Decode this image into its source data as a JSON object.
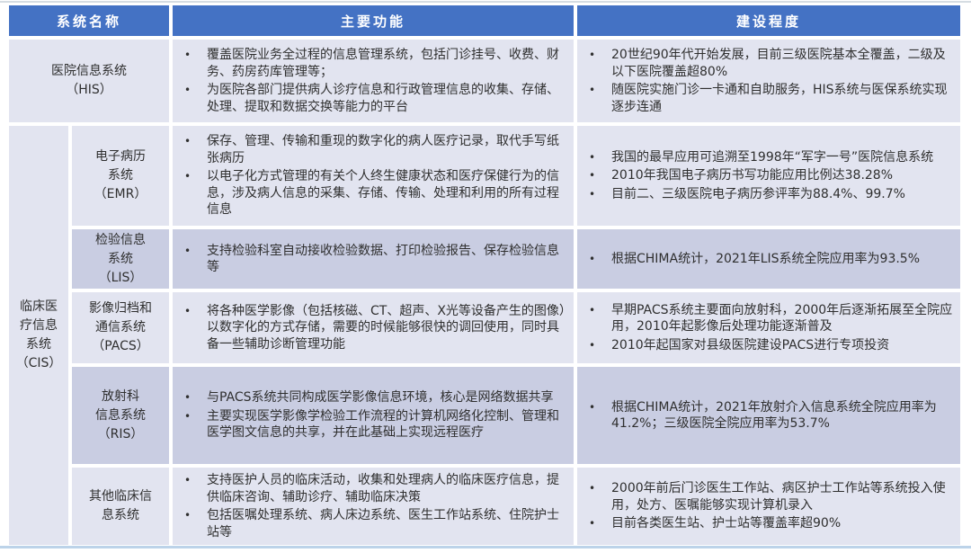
{
  "bullet_icon": "•",
  "colors": {
    "header_bg": "#4472C4",
    "header_text": "#FFFFFF",
    "row_light": "#E2E4F0",
    "row_dark": "#C9CDE2",
    "body_text": "#2F2F2F",
    "top_line": "#D5DCE2",
    "bottom_line": "#BCD3E9"
  },
  "title_row": {
    "system": "系统名称",
    "function": "主要功能",
    "construction": "建设程度"
  },
  "rows": {
    "his": {
      "name": "医院信息系统\n（HIS）",
      "functions": [
        "覆盖医院业务全过程的信息管理系统，包括门诊挂号、收费、财务、药房药库管理等；",
        "为医院各部门提供病人诊疗信息和行政管理信息的收集、存储、处理、提取和数据交换等能力的平台"
      ],
      "construction": [
        "20世纪90年代开始发展，目前三级医院基本全覆盖，二级及以下医院覆盖超80%",
        "随医院实施门诊一卡通和自助服务，HIS系统与医保系统实现逐步连通"
      ]
    },
    "cis_group": {
      "name": "临床医\n疗信息\n系统\n（CIS）"
    },
    "emr": {
      "name": "电子病历\n系统\n（EMR）",
      "functions": [
        "保存、管理、传输和重现的数字化的病人医疗记录，取代手写纸张病历",
        "以电子化方式管理的有关个人终生健康状态和医疗保健行为的信息，涉及病人信息的采集、存储、传输、处理和利用的所有过程信息"
      ],
      "construction": [
        "我国的最早应用可追溯至1998年“军字一号”医院信息系统",
        "2010年我国电子病历书写功能应用比例达38.28%",
        "目前二、三级医院电子病历参评率为88.4%、99.7%"
      ]
    },
    "lis": {
      "name": "检验信息\n系统\n（LIS）",
      "functions": [
        "支持检验科室自动接收检验数据、打印检验报告、保存检验信息等"
      ],
      "construction": [
        "根据CHIMA统计，2021年LIS系统全院应用率为93.5%"
      ]
    },
    "pacs": {
      "name": "影像归档和\n通信系统\n（PACS）",
      "functions": [
        "将各种医学影像（包括核磁、CT、超声、X光等设备产生的图像）以数字化的方式存储，需要的时候能够很快的调回使用，同时具备一些辅助诊断管理功能"
      ],
      "construction": [
        "早期PACS系统主要面向放射科，2000年后逐渐拓展至全院应用，2010年起影像后处理功能逐渐普及",
        "2010年起国家对县级医院建设PACS进行专项投资"
      ]
    },
    "ris": {
      "name": "放射科\n信息系统\n（RIS）",
      "functions": [
        "与PACS系统共同构成医学影像信息环境，核心是网络数据共享",
        "主要实现医学影像学检验工作流程的计算机网络化控制、管理和医学图文信息的共享，并在此基础上实现远程医疗"
      ],
      "construction": [
        "根据CHIMA统计，2021年放射介入信息系统全院应用率为41.2%；三级医院全院应用率为53.7%"
      ]
    },
    "other": {
      "name": "其他临床信\n息系统",
      "functions": [
        "支持医护人员的临床活动，收集和处理病人的临床医疗信息，提供临床咨询、辅助诊疗、辅助临床决策",
        "包括医嘱处理系统、病人床边系统、医生工作站系统、住院护士站等"
      ],
      "construction": [
        "2000年前后门诊医生工作站、病区护士工作站等系统投入使用，处方、医嘱能够实现计算机录入",
        "目前各类医生站、护士站等覆盖率超90%"
      ]
    }
  }
}
